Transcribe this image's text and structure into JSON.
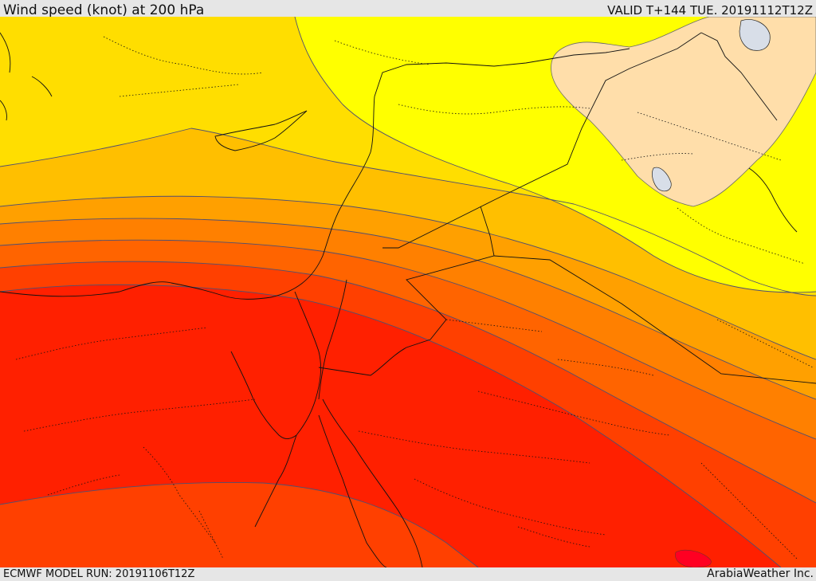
{
  "header": {
    "title": "Wind speed (knot) at 200 hPa",
    "valid_time": "VALID T+144 TUE. 20191112T12Z"
  },
  "footer": {
    "model_run": "ECMWF MODEL RUN: 20191106T12Z",
    "credit": "ArabiaWeather Inc."
  },
  "colors": {
    "band_yellow": "#ffff00",
    "band_gold": "#ffde00",
    "band_amber": "#ffbf00",
    "band_orange_light": "#ffa000",
    "band_orange": "#ff8000",
    "band_orange_dark": "#ff6400",
    "band_red_orange": "#ff4000",
    "band_red": "#ff2000",
    "band_max": "#ff0022",
    "band_low": "#ffdeaa",
    "water": "#d8dee8"
  }
}
